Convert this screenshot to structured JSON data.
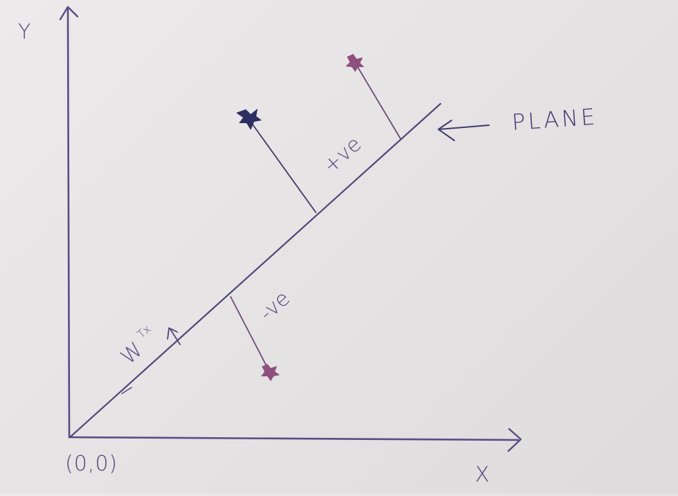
{
  "labels": {
    "y_axis": "Y",
    "x_axis": "X",
    "origin": "(0,0)",
    "plane": "PLANE",
    "positive_side": "+ve",
    "negative_side": "-ve",
    "weight_vector": "W",
    "weight_superscript": "Tx"
  },
  "colors": {
    "ink_axis": "#5a4a86",
    "ink_plane": "#4e4578",
    "point_pink": "#8e4f7f",
    "point_navy": "#2d2f63",
    "paper": "#e6e4e4"
  },
  "points": [
    {
      "name": "positive-point-upper",
      "side": "positive",
      "color_key": "point_pink"
    },
    {
      "name": "positive-point-left",
      "side": "positive",
      "color_key": "point_navy"
    },
    {
      "name": "negative-point",
      "side": "negative",
      "color_key": "point_pink"
    }
  ]
}
